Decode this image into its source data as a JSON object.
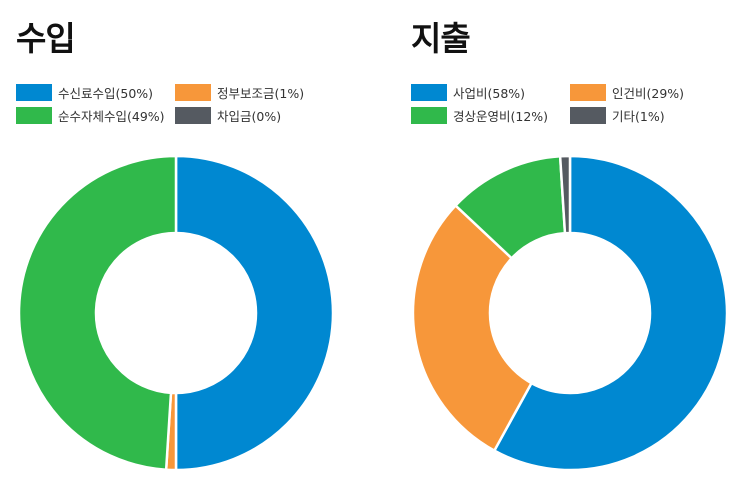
{
  "chart_data": [
    {
      "type": "pie",
      "title": "수입",
      "donut": true,
      "legend_position": "top",
      "categories": [
        "수신료수입",
        "정부보조금",
        "순수자체수입",
        "차입금"
      ],
      "legend_labels": [
        "수신료수입(50%)",
        "정부보조금(1%)",
        "순수자체수입(49%)",
        "차입금(0%)"
      ],
      "values": [
        50,
        1,
        49,
        0
      ],
      "colors": [
        "#0088d1",
        "#f7973a",
        "#30b94b",
        "#555a61"
      ]
    },
    {
      "type": "pie",
      "title": "지출",
      "donut": true,
      "legend_position": "top",
      "categories": [
        "사업비",
        "인건비",
        "경상운영비",
        "기타"
      ],
      "legend_labels": [
        "사업비(58%)",
        "인건비(29%)",
        "경상운영비(12%)",
        "기타(1%)"
      ],
      "values": [
        58,
        29,
        12,
        1
      ],
      "colors": [
        "#0088d1",
        "#f7973a",
        "#30b94b",
        "#555a61"
      ]
    }
  ]
}
